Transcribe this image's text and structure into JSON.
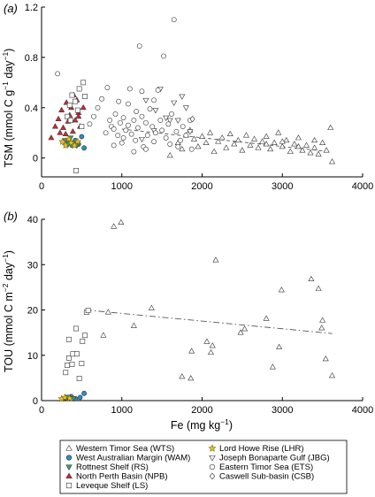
{
  "chart_data": [
    {
      "type": "scatter",
      "panel_label": "(a)",
      "xlabel": "",
      "ylabel": "TSM (mmol C g−1 day−1)",
      "ylabel_parts": {
        "main": "TSM (mmol C g",
        "sup1": "−1",
        "mid": " day",
        "sup2": "−1",
        "end": ")"
      },
      "xlim": [
        0,
        4000
      ],
      "ylim": [
        -0.15,
        1.2
      ],
      "xticks": [
        0,
        1000,
        2000,
        3000,
        4000
      ],
      "yticks": [
        0,
        0.4,
        0.8,
        1.2
      ],
      "ytick_labels": [
        "0",
        "0.4",
        "0.8",
        "1.2"
      ],
      "trend": {
        "x": [
          1000,
          3600
        ],
        "y": [
          0.23,
          0.05
        ],
        "style": "dashed"
      },
      "series": [
        {
          "key": "WTS",
          "points": [
            [
              1600,
              0.02
            ],
            [
              1700,
              0.12
            ],
            [
              1750,
              0.07
            ],
            [
              1800,
              0.18
            ],
            [
              1850,
              0.22
            ],
            [
              1900,
              0.15
            ],
            [
              1950,
              0.09
            ],
            [
              2000,
              0.17
            ],
            [
              2050,
              0.12
            ],
            [
              2100,
              0.2
            ],
            [
              2150,
              0.05
            ],
            [
              2200,
              0.13
            ],
            [
              2250,
              0.16
            ],
            [
              2300,
              0.08
            ],
            [
              2350,
              0.19
            ],
            [
              2400,
              0.11
            ],
            [
              2450,
              0.14
            ],
            [
              2500,
              0.06
            ],
            [
              2550,
              0.18
            ],
            [
              2600,
              0.1
            ],
            [
              2650,
              0.15
            ],
            [
              2700,
              0.08
            ],
            [
              2750,
              0.13
            ],
            [
              2800,
              0.17
            ],
            [
              2850,
              0.07
            ],
            [
              2900,
              0.12
            ],
            [
              2950,
              0.2
            ],
            [
              3000,
              0.09
            ],
            [
              3050,
              0.14
            ],
            [
              3100,
              0.05
            ],
            [
              3150,
              0.11
            ],
            [
              3200,
              0.16
            ],
            [
              3250,
              0.06
            ],
            [
              3300,
              0.1
            ],
            [
              3350,
              0.04
            ],
            [
              3400,
              0.08
            ],
            [
              3450,
              0.03
            ],
            [
              3500,
              0.12
            ],
            [
              3550,
              0.06
            ],
            [
              3600,
              0.24
            ],
            [
              3620,
              -0.03
            ],
            [
              3400,
              0.14
            ],
            [
              3200,
              0.09
            ],
            [
              3000,
              0.13
            ],
            [
              2800,
              0.11
            ]
          ]
        },
        {
          "key": "WAM",
          "points": [
            [
              350,
              0.12
            ],
            [
              380,
              0.1
            ],
            [
              420,
              0.14
            ],
            [
              460,
              0.11
            ],
            [
              500,
              0.17
            ],
            [
              530,
              0.08
            ]
          ]
        },
        {
          "key": "RS",
          "points": [
            [
              300,
              0.14
            ],
            [
              330,
              0.11
            ],
            [
              360,
              0.16
            ],
            [
              400,
              0.12
            ],
            [
              440,
              0.1
            ]
          ]
        },
        {
          "key": "NPB",
          "points": [
            [
              120,
              0.16
            ],
            [
              170,
              0.25
            ],
            [
              210,
              0.31
            ],
            [
              250,
              0.38
            ],
            [
              270,
              0.24
            ],
            [
              310,
              0.44
            ],
            [
              330,
              0.29
            ],
            [
              350,
              0.34
            ],
            [
              370,
              0.4
            ],
            [
              390,
              0.21
            ],
            [
              420,
              0.3
            ],
            [
              440,
              0.46
            ],
            [
              460,
              0.36
            ],
            [
              480,
              0.25
            ],
            [
              300,
              0.19
            ],
            [
              230,
              0.2
            ],
            [
              520,
              0.4
            ],
            [
              400,
              0.5
            ],
            [
              460,
              0.33
            ]
          ]
        },
        {
          "key": "LS",
          "points": [
            [
              320,
              0.33
            ],
            [
              350,
              0.42
            ],
            [
              380,
              0.5
            ],
            [
              420,
              0.45
            ],
            [
              450,
              0.38
            ],
            [
              470,
              0.55
            ],
            [
              520,
              0.6
            ],
            [
              540,
              0.49
            ],
            [
              360,
              0.3
            ],
            [
              430,
              -0.1
            ],
            [
              500,
              0.25
            ]
          ]
        },
        {
          "key": "LHR",
          "points": [
            [
              260,
              0.13
            ],
            [
              300,
              0.1
            ],
            [
              340,
              0.15
            ],
            [
              370,
              0.12
            ],
            [
              410,
              0.1
            ],
            [
              450,
              0.13
            ]
          ]
        },
        {
          "key": "JBG",
          "points": [
            [
              1300,
              0.46
            ],
            [
              1420,
              0.38
            ],
            [
              1480,
              0.55
            ],
            [
              1550,
              0.32
            ],
            [
              1600,
              0.3
            ],
            [
              1700,
              0.3
            ],
            [
              1750,
              0.49
            ],
            [
              1800,
              0.4
            ],
            [
              1850,
              0.21
            ],
            [
              1400,
              0.22
            ],
            [
              1250,
              0.15
            ],
            [
              1650,
              0.44
            ]
          ]
        },
        {
          "key": "ETS",
          "points": [
            [
              200,
              0.67
            ],
            [
              600,
              0.27
            ],
            [
              650,
              0.33
            ],
            [
              700,
              0.4
            ],
            [
              750,
              0.47
            ],
            [
              800,
              0.2
            ],
            [
              820,
              0.56
            ],
            [
              850,
              0.3
            ],
            [
              870,
              0.25
            ],
            [
              900,
              0.1
            ],
            [
              920,
              0.35
            ],
            [
              950,
              0.18
            ],
            [
              980,
              0.28
            ],
            [
              1000,
              0.12
            ],
            [
              1020,
              0.32
            ],
            [
              1050,
              0.22
            ],
            [
              1080,
              0.26
            ],
            [
              1100,
              0.55
            ],
            [
              1120,
              0.19
            ],
            [
              1150,
              0.3
            ],
            [
              1170,
              0.14
            ],
            [
              1200,
              0.24
            ],
            [
              1220,
              0.89
            ],
            [
              1250,
              0.33
            ],
            [
              1270,
              0.09
            ],
            [
              1300,
              0.28
            ],
            [
              1320,
              0.18
            ],
            [
              1350,
              0.39
            ],
            [
              1380,
              0.25
            ],
            [
              1400,
              0.13
            ],
            [
              1420,
              0.2
            ],
            [
              1450,
              0.54
            ],
            [
              1480,
              0.3
            ],
            [
              1500,
              0.22
            ],
            [
              1520,
              0.81
            ],
            [
              1550,
              0.16
            ],
            [
              1580,
              0.27
            ],
            [
              1600,
              0.11
            ],
            [
              1620,
              0.35
            ],
            [
              1650,
              1.1
            ],
            [
              1680,
              0.21
            ],
            [
              1700,
              0.09
            ],
            [
              1730,
              0.14
            ],
            [
              1760,
              0.25
            ],
            [
              1800,
              0.18
            ],
            [
              1850,
              0.3
            ],
            [
              1870,
              0.07
            ],
            [
              1080,
              0.43
            ],
            [
              960,
              0.45
            ],
            [
              1150,
              0.05
            ],
            [
              1250,
              0.53
            ],
            [
              1400,
              0.46
            ],
            [
              1180,
              0.37
            ],
            [
              900,
              0.23
            ],
            [
              1020,
              0.16
            ],
            [
              1300,
              0.07
            ]
          ]
        },
        {
          "key": "CSB",
          "points": [
            [
              1880,
              0.31
            ]
          ]
        }
      ]
    },
    {
      "type": "scatter",
      "panel_label": "(b)",
      "xlabel": "Fe (mg kg−1)",
      "xlabel_parts": {
        "main": "Fe (mg kg",
        "sup": "−1",
        "end": ")"
      },
      "ylabel": "TOU (mmol C m−2 day−1)",
      "ylabel_parts": {
        "main": "TOU (mmol C m",
        "sup1": "−2",
        "mid": " day",
        "sup2": "−1",
        "end": ")"
      },
      "xlim": [
        0,
        4000
      ],
      "ylim": [
        0,
        40
      ],
      "xticks": [
        0,
        1000,
        2000,
        3000,
        4000
      ],
      "yticks": [
        0,
        10,
        20,
        30,
        40
      ],
      "ytick_labels": [
        "0",
        "10",
        "20",
        "30",
        "40"
      ],
      "trend": {
        "x": [
          550,
          3620
        ],
        "y": [
          20,
          14.8
        ],
        "style": "dashdot"
      },
      "series": [
        {
          "key": "WTS",
          "points": [
            [
              770,
              14.4
            ],
            [
              830,
              19.5
            ],
            [
              900,
              38.4
            ],
            [
              990,
              39.3
            ],
            [
              1150,
              16.5
            ],
            [
              1370,
              20.4
            ],
            [
              1750,
              5.3
            ],
            [
              1860,
              4.9
            ],
            [
              1870,
              10.9
            ],
            [
              2060,
              13
            ],
            [
              2110,
              10.6
            ],
            [
              2130,
              12.1
            ],
            [
              2170,
              31
            ],
            [
              2480,
              15
            ],
            [
              2530,
              15.8
            ],
            [
              2800,
              18.1
            ],
            [
              2880,
              7.4
            ],
            [
              2990,
              24.4
            ],
            [
              3360,
              26.8
            ],
            [
              3450,
              24.7
            ],
            [
              3500,
              17.7
            ],
            [
              3540,
              9.2
            ],
            [
              3620,
              5.5
            ],
            [
              2960,
              11.8
            ],
            [
              3490,
              16
            ]
          ]
        },
        {
          "key": "WAM",
          "points": [
            [
              300,
              0.6
            ],
            [
              370,
              0.9
            ],
            [
              420,
              0.4
            ],
            [
              480,
              0.7
            ],
            [
              530,
              1.6
            ]
          ]
        },
        {
          "key": "RS",
          "points": [
            [
              330,
              0.8
            ],
            [
              400,
              0.5
            ]
          ]
        },
        {
          "key": "NPB",
          "points": []
        },
        {
          "key": "LS",
          "points": [
            [
              300,
              6.2
            ],
            [
              320,
              7.8
            ],
            [
              340,
              9.4
            ],
            [
              340,
              13.5
            ],
            [
              380,
              8
            ],
            [
              390,
              10.3
            ],
            [
              440,
              10.3
            ],
            [
              430,
              15.9
            ],
            [
              470,
              4.9
            ],
            [
              500,
              8.2
            ],
            [
              510,
              13.1
            ],
            [
              540,
              14.4
            ],
            [
              560,
              19.5
            ],
            [
              580,
              19.9
            ]
          ]
        },
        {
          "key": "LHR",
          "points": [
            [
              250,
              0.4
            ],
            [
              290,
              0.7
            ],
            [
              350,
              0.5
            ]
          ]
        },
        {
          "key": "JBG",
          "points": []
        },
        {
          "key": "ETS",
          "points": []
        },
        {
          "key": "CSB",
          "points": []
        }
      ]
    }
  ],
  "legend": {
    "placement": "bottom",
    "items": [
      {
        "key": "WTS",
        "label": "Western Timor Sea (WTS)",
        "marker": "triangle-up",
        "fill": "#ffffff"
      },
      {
        "key": "WAM",
        "label": "West Australian Margin (WAM)",
        "marker": "circle",
        "fill": "#2a8fbf"
      },
      {
        "key": "RS",
        "label": "Rottnest Shelf (RS)",
        "marker": "triangle-down",
        "fill": "#3aa06a"
      },
      {
        "key": "NPB",
        "label": "North Perth Basin (NPB)",
        "marker": "triangle-up",
        "fill": "#d8262f"
      },
      {
        "key": "LS",
        "label": "Leveque Shelf (LS)",
        "marker": "square",
        "fill": "#ffffff"
      },
      {
        "key": "LHR",
        "label": "Lord Howe Rise (LHR)",
        "marker": "star",
        "fill": "#e8c32a"
      },
      {
        "key": "JBG",
        "label": "Joseph Bonaparte Gulf (JBG)",
        "marker": "triangle-down",
        "fill": "#ffffff"
      },
      {
        "key": "ETS",
        "label": "Eastern Timor Sea (ETS)",
        "marker": "circle",
        "fill": "#ffffff"
      },
      {
        "key": "CSB",
        "label": "Caswell Sub-basin (CSB)",
        "marker": "diamond",
        "fill": "#ffffff"
      }
    ]
  }
}
